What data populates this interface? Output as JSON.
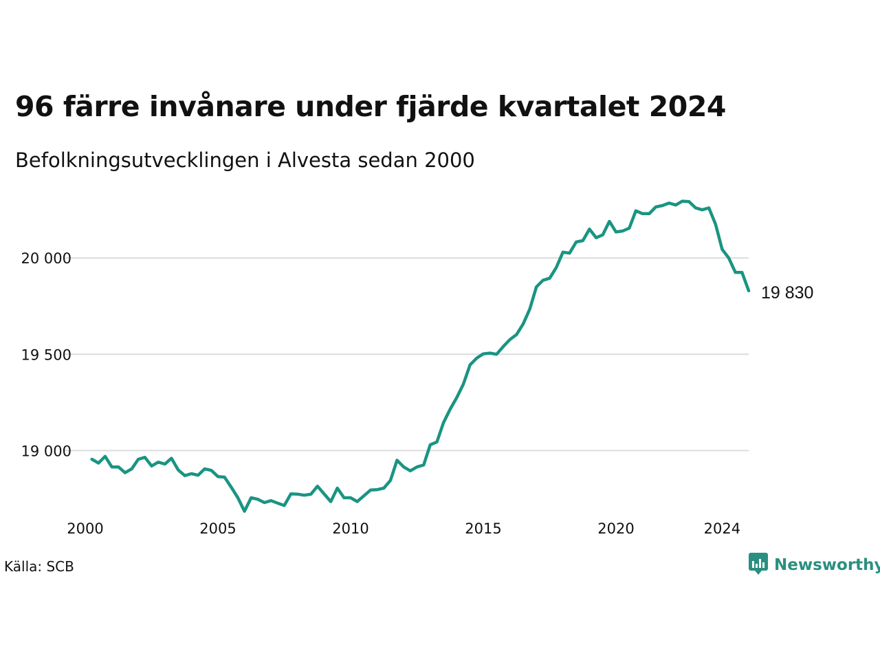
{
  "title": "96 färre invånare under fjärde kvartalet 2024",
  "subtitle": "Befolkningsutvecklingen i Alvesta sedan 2000",
  "source": "Källa: SCB",
  "brand": {
    "name": "Newsworthy",
    "icon": "newsworthy-logo-icon",
    "color": "#2a8f80"
  },
  "chart_data": {
    "type": "line",
    "line_color": "#1a9482",
    "grid": true,
    "x_ticks": [
      2000,
      2005,
      2010,
      2015,
      2020,
      2024
    ],
    "y_ticks": [
      19000,
      19500,
      20000
    ],
    "y_tick_labels": [
      "19 000",
      "19 500",
      "20 000"
    ],
    "xlim": [
      2000,
      2025
    ],
    "ylim": [
      18680,
      20340
    ],
    "end_label": "19 830",
    "series": [
      {
        "x": [
          2000.25,
          2000.5,
          2000.75,
          2001.0,
          2001.25,
          2001.5,
          2001.75,
          2002.0,
          2002.25,
          2002.5,
          2002.75,
          2003.0,
          2003.25,
          2003.5,
          2003.75,
          2004.0,
          2004.25,
          2004.5,
          2004.75,
          2005.0,
          2005.25,
          2005.5,
          2005.75,
          2006.0,
          2006.25,
          2006.5,
          2006.75,
          2007.0,
          2007.25,
          2007.5,
          2007.75,
          2008.0,
          2008.25,
          2008.5,
          2008.75,
          2009.0,
          2009.25,
          2009.5,
          2009.75,
          2010.0,
          2010.25,
          2010.5,
          2010.75,
          2011.0,
          2011.25,
          2011.5,
          2011.75,
          2012.0,
          2012.25,
          2012.5,
          2012.75,
          2013.0,
          2013.25,
          2013.5,
          2013.75,
          2014.0,
          2014.25,
          2014.5,
          2014.75,
          2015.0,
          2015.25,
          2015.5,
          2015.75,
          2016.0,
          2016.25,
          2016.5,
          2016.75,
          2017.0,
          2017.25,
          2017.5,
          2017.75,
          2018.0,
          2018.25,
          2018.5,
          2018.75,
          2019.0,
          2019.25,
          2019.5,
          2019.75,
          2020.0,
          2020.25,
          2020.5,
          2020.75,
          2021.0,
          2021.25,
          2021.5,
          2021.75,
          2022.0,
          2022.25,
          2022.5,
          2022.75,
          2023.0,
          2023.25,
          2023.5,
          2023.75,
          2024.0,
          2024.25,
          2024.5,
          2024.75,
          2025.0
        ],
        "y": [
          18955,
          18935,
          18970,
          18915,
          18915,
          18885,
          18905,
          18955,
          18965,
          18920,
          18940,
          18930,
          18960,
          18900,
          18870,
          18880,
          18872,
          18905,
          18897,
          18865,
          18862,
          18810,
          18755,
          18685,
          18755,
          18747,
          18730,
          18740,
          18727,
          18715,
          18775,
          18774,
          18768,
          18773,
          18815,
          18775,
          18735,
          18805,
          18755,
          18755,
          18735,
          18765,
          18795,
          18797,
          18805,
          18845,
          18950,
          18915,
          18895,
          18915,
          18925,
          19030,
          19045,
          19145,
          19215,
          19275,
          19345,
          19445,
          19480,
          19502,
          19506,
          19500,
          19540,
          19576,
          19602,
          19657,
          19735,
          19850,
          19884,
          19895,
          19950,
          20030,
          20025,
          20083,
          20090,
          20150,
          20105,
          20120,
          20190,
          20135,
          20140,
          20155,
          20245,
          20230,
          20230,
          20265,
          20272,
          20285,
          20275,
          20295,
          20293,
          20260,
          20250,
          20260,
          20175,
          20045,
          20000,
          19925,
          19925,
          19830
        ]
      }
    ]
  }
}
